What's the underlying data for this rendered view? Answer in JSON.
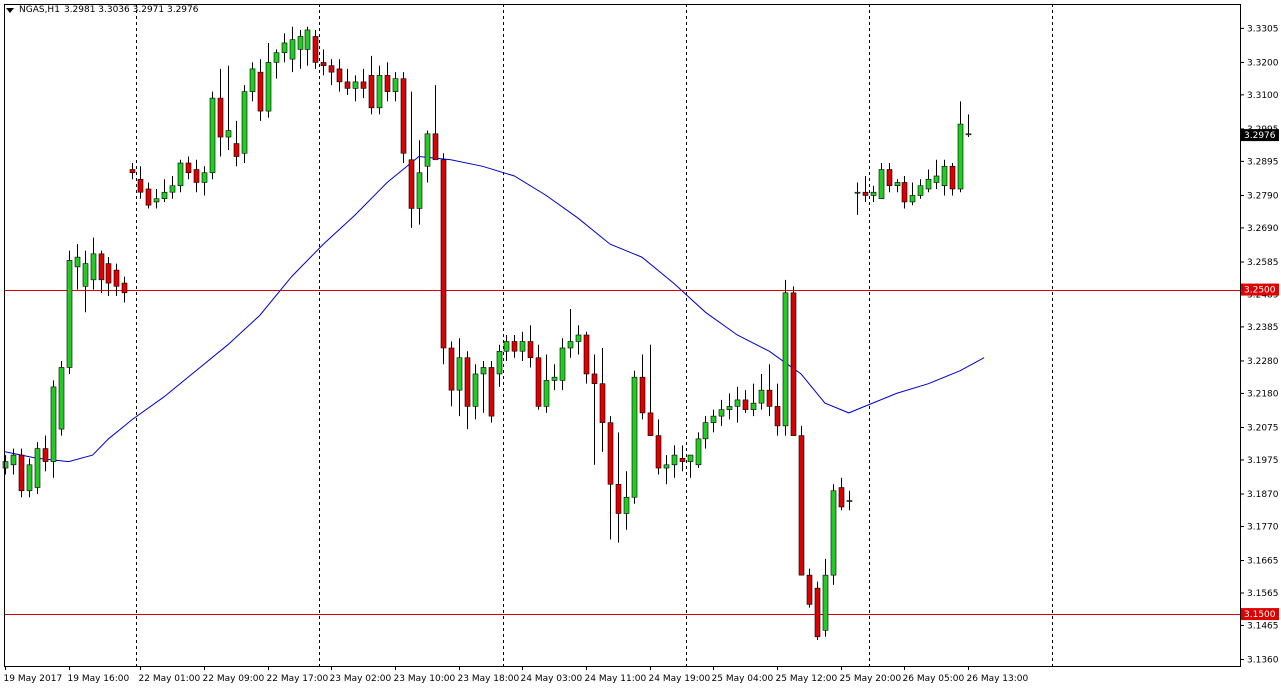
{
  "header": {
    "symbol": "NGAS,H1",
    "ohlc": "3.2981 3.3036 3.2971 3.2976"
  },
  "colors": {
    "bull": "#22cc22",
    "bear": "#dd0000",
    "wick": "#000000",
    "ma": "#0000cc",
    "hline": "#dd0000",
    "price_tag": "#000000",
    "level_tag": "#dd0000",
    "grid": "#000000"
  },
  "chart_data": {
    "type": "candlestick",
    "ylim": [
      3.134,
      3.338
    ],
    "y_ticks": [
      "3.3305",
      "3.3200",
      "3.3100",
      "3.2995",
      "3.2895",
      "3.2790",
      "3.2690",
      "3.2585",
      "3.2485",
      "3.2385",
      "3.2280",
      "3.2180",
      "3.2075",
      "3.1975",
      "3.1870",
      "3.1770",
      "3.1665",
      "3.1565",
      "3.1465",
      "3.1360"
    ],
    "x_ticks": [
      {
        "label": "19 May 2017",
        "i": 0
      },
      {
        "label": "19 May 16:00",
        "i": 8
      },
      {
        "label": "22 May 01:00",
        "i": 17
      },
      {
        "label": "22 May 09:00",
        "i": 25
      },
      {
        "label": "22 May 17:00",
        "i": 33
      },
      {
        "label": "23 May 02:00",
        "i": 41
      },
      {
        "label": "23 May 10:00",
        "i": 49
      },
      {
        "label": "23 May 18:00",
        "i": 57
      },
      {
        "label": "24 May 03:00",
        "i": 65
      },
      {
        "label": "24 May 11:00",
        "i": 73
      },
      {
        "label": "24 May 19:00",
        "i": 81
      },
      {
        "label": "25 May 04:00",
        "i": 89
      },
      {
        "label": "25 May 12:00",
        "i": 97
      },
      {
        "label": "25 May 20:00",
        "i": 105
      },
      {
        "label": "26 May 05:00",
        "i": 113
      },
      {
        "label": "26 May 13:00",
        "i": 121
      }
    ],
    "day_separators": [
      16.5,
      39.5,
      62.5,
      85.5,
      108.5,
      131.5
    ],
    "horizontal_lines": [
      {
        "price": 3.25,
        "label": "3.2500"
      },
      {
        "price": 3.15,
        "label": "3.1500"
      }
    ],
    "current_price": {
      "price": 3.2976,
      "label": "3.2976"
    },
    "ma_line": [
      [
        0,
        3.2
      ],
      [
        4,
        3.198
      ],
      [
        8,
        3.197
      ],
      [
        11,
        3.199
      ],
      [
        13,
        3.204
      ],
      [
        16,
        3.21
      ],
      [
        20,
        3.217
      ],
      [
        24,
        3.225
      ],
      [
        28,
        3.233
      ],
      [
        32,
        3.242
      ],
      [
        36,
        3.254
      ],
      [
        40,
        3.264
      ],
      [
        44,
        3.273
      ],
      [
        48,
        3.283
      ],
      [
        52,
        3.291
      ],
      [
        56,
        3.29
      ],
      [
        60,
        3.288
      ],
      [
        64,
        3.285
      ],
      [
        68,
        3.279
      ],
      [
        72,
        3.272
      ],
      [
        76,
        3.264
      ],
      [
        80,
        3.26
      ],
      [
        84,
        3.252
      ],
      [
        88,
        3.243
      ],
      [
        92,
        3.236
      ],
      [
        96,
        3.231
      ],
      [
        100,
        3.224
      ],
      [
        103,
        3.215
      ],
      [
        106,
        3.212
      ],
      [
        108,
        3.214
      ],
      [
        112,
        3.218
      ],
      [
        116,
        3.221
      ],
      [
        120,
        3.225
      ],
      [
        123,
        3.229
      ]
    ],
    "candles": [
      {
        "o": 3.195,
        "h": 3.199,
        "l": 3.193,
        "c": 3.197
      },
      {
        "o": 3.196,
        "h": 3.201,
        "l": 3.193,
        "c": 3.199
      },
      {
        "o": 3.199,
        "h": 3.201,
        "l": 3.186,
        "c": 3.188
      },
      {
        "o": 3.188,
        "h": 3.198,
        "l": 3.186,
        "c": 3.196
      },
      {
        "o": 3.189,
        "h": 3.203,
        "l": 3.187,
        "c": 3.201
      },
      {
        "o": 3.201,
        "h": 3.205,
        "l": 3.194,
        "c": 3.197
      },
      {
        "o": 3.197,
        "h": 3.222,
        "l": 3.192,
        "c": 3.22
      },
      {
        "o": 3.207,
        "h": 3.228,
        "l": 3.205,
        "c": 3.226
      },
      {
        "o": 3.226,
        "h": 3.262,
        "l": 3.224,
        "c": 3.259
      },
      {
        "o": 3.257,
        "h": 3.264,
        "l": 3.25,
        "c": 3.26
      },
      {
        "o": 3.251,
        "h": 3.262,
        "l": 3.243,
        "c": 3.258
      },
      {
        "o": 3.253,
        "h": 3.266,
        "l": 3.25,
        "c": 3.261
      },
      {
        "o": 3.261,
        "h": 3.262,
        "l": 3.249,
        "c": 3.253
      },
      {
        "o": 3.258,
        "h": 3.26,
        "l": 3.248,
        "c": 3.252
      },
      {
        "o": 3.256,
        "h": 3.258,
        "l": 3.248,
        "c": 3.251
      },
      {
        "o": 3.252,
        "h": 3.254,
        "l": 3.246,
        "c": 3.249
      },
      {
        "o": 3.287,
        "h": 3.289,
        "l": 3.284,
        "c": 3.286
      },
      {
        "o": 3.284,
        "h": 3.288,
        "l": 3.278,
        "c": 3.28
      },
      {
        "o": 3.281,
        "h": 3.283,
        "l": 3.275,
        "c": 3.276
      },
      {
        "o": 3.277,
        "h": 3.281,
        "l": 3.275,
        "c": 3.278
      },
      {
        "o": 3.278,
        "h": 3.284,
        "l": 3.277,
        "c": 3.28
      },
      {
        "o": 3.28,
        "h": 3.285,
        "l": 3.278,
        "c": 3.282
      },
      {
        "o": 3.282,
        "h": 3.29,
        "l": 3.28,
        "c": 3.289
      },
      {
        "o": 3.289,
        "h": 3.291,
        "l": 3.284,
        "c": 3.286
      },
      {
        "o": 3.287,
        "h": 3.29,
        "l": 3.28,
        "c": 3.283
      },
      {
        "o": 3.283,
        "h": 3.288,
        "l": 3.279,
        "c": 3.286
      },
      {
        "o": 3.286,
        "h": 3.311,
        "l": 3.284,
        "c": 3.309
      },
      {
        "o": 3.309,
        "h": 3.318,
        "l": 3.291,
        "c": 3.297
      },
      {
        "o": 3.297,
        "h": 3.319,
        "l": 3.293,
        "c": 3.299
      },
      {
        "o": 3.295,
        "h": 3.302,
        "l": 3.288,
        "c": 3.291
      },
      {
        "o": 3.292,
        "h": 3.313,
        "l": 3.289,
        "c": 3.311
      },
      {
        "o": 3.311,
        "h": 3.32,
        "l": 3.308,
        "c": 3.318
      },
      {
        "o": 3.317,
        "h": 3.321,
        "l": 3.302,
        "c": 3.305
      },
      {
        "o": 3.305,
        "h": 3.326,
        "l": 3.303,
        "c": 3.32
      },
      {
        "o": 3.32,
        "h": 3.324,
        "l": 3.315,
        "c": 3.323
      },
      {
        "o": 3.323,
        "h": 3.329,
        "l": 3.32,
        "c": 3.326
      },
      {
        "o": 3.321,
        "h": 3.331,
        "l": 3.317,
        "c": 3.327
      },
      {
        "o": 3.324,
        "h": 3.33,
        "l": 3.318,
        "c": 3.328
      },
      {
        "o": 3.324,
        "h": 3.331,
        "l": 3.319,
        "c": 3.33
      },
      {
        "o": 3.328,
        "h": 3.33,
        "l": 3.318,
        "c": 3.32
      },
      {
        "o": 3.32,
        "h": 3.324,
        "l": 3.316,
        "c": 3.319
      },
      {
        "o": 3.319,
        "h": 3.321,
        "l": 3.313,
        "c": 3.317
      },
      {
        "o": 3.318,
        "h": 3.321,
        "l": 3.311,
        "c": 3.314
      },
      {
        "o": 3.314,
        "h": 3.318,
        "l": 3.31,
        "c": 3.312
      },
      {
        "o": 3.312,
        "h": 3.316,
        "l": 3.308,
        "c": 3.314
      },
      {
        "o": 3.314,
        "h": 3.318,
        "l": 3.309,
        "c": 3.312
      },
      {
        "o": 3.316,
        "h": 3.322,
        "l": 3.304,
        "c": 3.306
      },
      {
        "o": 3.306,
        "h": 3.319,
        "l": 3.304,
        "c": 3.316
      },
      {
        "o": 3.316,
        "h": 3.32,
        "l": 3.308,
        "c": 3.311
      },
      {
        "o": 3.311,
        "h": 3.317,
        "l": 3.308,
        "c": 3.315
      },
      {
        "o": 3.315,
        "h": 3.317,
        "l": 3.289,
        "c": 3.292
      },
      {
        "o": 3.29,
        "h": 3.311,
        "l": 3.269,
        "c": 3.275
      },
      {
        "o": 3.275,
        "h": 3.296,
        "l": 3.27,
        "c": 3.286
      },
      {
        "o": 3.288,
        "h": 3.299,
        "l": 3.283,
        "c": 3.298
      },
      {
        "o": 3.298,
        "h": 3.313,
        "l": 3.29,
        "c": 3.29
      },
      {
        "o": 3.29,
        "h": 3.292,
        "l": 3.227,
        "c": 3.232
      },
      {
        "o": 3.232,
        "h": 3.234,
        "l": 3.214,
        "c": 3.219
      },
      {
        "o": 3.219,
        "h": 3.235,
        "l": 3.211,
        "c": 3.229
      },
      {
        "o": 3.229,
        "h": 3.231,
        "l": 3.207,
        "c": 3.214
      },
      {
        "o": 3.214,
        "h": 3.227,
        "l": 3.21,
        "c": 3.224
      },
      {
        "o": 3.224,
        "h": 3.228,
        "l": 3.212,
        "c": 3.226
      },
      {
        "o": 3.226,
        "h": 3.228,
        "l": 3.209,
        "c": 3.211
      },
      {
        "o": 3.224,
        "h": 3.233,
        "l": 3.22,
        "c": 3.231
      },
      {
        "o": 3.231,
        "h": 3.236,
        "l": 3.228,
        "c": 3.234
      },
      {
        "o": 3.234,
        "h": 3.236,
        "l": 3.229,
        "c": 3.231
      },
      {
        "o": 3.231,
        "h": 3.237,
        "l": 3.228,
        "c": 3.234
      },
      {
        "o": 3.234,
        "h": 3.239,
        "l": 3.226,
        "c": 3.229
      },
      {
        "o": 3.229,
        "h": 3.233,
        "l": 3.213,
        "c": 3.214
      },
      {
        "o": 3.214,
        "h": 3.23,
        "l": 3.212,
        "c": 3.222
      },
      {
        "o": 3.222,
        "h": 3.227,
        "l": 3.219,
        "c": 3.223
      },
      {
        "o": 3.222,
        "h": 3.235,
        "l": 3.219,
        "c": 3.232
      },
      {
        "o": 3.232,
        "h": 3.244,
        "l": 3.229,
        "c": 3.234
      },
      {
        "o": 3.234,
        "h": 3.239,
        "l": 3.23,
        "c": 3.236
      },
      {
        "o": 3.236,
        "h": 3.237,
        "l": 3.221,
        "c": 3.224
      },
      {
        "o": 3.224,
        "h": 3.23,
        "l": 3.196,
        "c": 3.221
      },
      {
        "o": 3.221,
        "h": 3.232,
        "l": 3.2,
        "c": 3.209
      },
      {
        "o": 3.209,
        "h": 3.211,
        "l": 3.173,
        "c": 3.19
      },
      {
        "o": 3.19,
        "h": 3.206,
        "l": 3.172,
        "c": 3.181
      },
      {
        "o": 3.181,
        "h": 3.194,
        "l": 3.176,
        "c": 3.186
      },
      {
        "o": 3.186,
        "h": 3.225,
        "l": 3.184,
        "c": 3.223
      },
      {
        "o": 3.223,
        "h": 3.23,
        "l": 3.21,
        "c": 3.212
      },
      {
        "o": 3.212,
        "h": 3.233,
        "l": 3.205,
        "c": 3.205
      },
      {
        "o": 3.205,
        "h": 3.21,
        "l": 3.193,
        "c": 3.195
      },
      {
        "o": 3.195,
        "h": 3.199,
        "l": 3.19,
        "c": 3.196
      },
      {
        "o": 3.196,
        "h": 3.202,
        "l": 3.192,
        "c": 3.199
      },
      {
        "o": 3.198,
        "h": 3.202,
        "l": 3.194,
        "c": 3.197
      },
      {
        "o": 3.197,
        "h": 3.199,
        "l": 3.192,
        "c": 3.199
      },
      {
        "o": 3.196,
        "h": 3.206,
        "l": 3.195,
        "c": 3.204
      },
      {
        "o": 3.204,
        "h": 3.211,
        "l": 3.201,
        "c": 3.209
      },
      {
        "o": 3.209,
        "h": 3.213,
        "l": 3.206,
        "c": 3.211
      },
      {
        "o": 3.211,
        "h": 3.216,
        "l": 3.208,
        "c": 3.213
      },
      {
        "o": 3.213,
        "h": 3.218,
        "l": 3.21,
        "c": 3.214
      },
      {
        "o": 3.214,
        "h": 3.22,
        "l": 3.209,
        "c": 3.216
      },
      {
        "o": 3.216,
        "h": 3.219,
        "l": 3.212,
        "c": 3.213
      },
      {
        "o": 3.213,
        "h": 3.221,
        "l": 3.211,
        "c": 3.215
      },
      {
        "o": 3.215,
        "h": 3.224,
        "l": 3.213,
        "c": 3.219
      },
      {
        "o": 3.219,
        "h": 3.227,
        "l": 3.211,
        "c": 3.214
      },
      {
        "o": 3.214,
        "h": 3.221,
        "l": 3.205,
        "c": 3.208
      },
      {
        "o": 3.208,
        "h": 3.253,
        "l": 3.205,
        "c": 3.249
      },
      {
        "o": 3.249,
        "h": 3.251,
        "l": 3.205,
        "c": 3.205
      },
      {
        "o": 3.205,
        "h": 3.208,
        "l": 3.162,
        "c": 3.162
      },
      {
        "o": 3.162,
        "h": 3.164,
        "l": 3.152,
        "c": 3.153
      },
      {
        "o": 3.158,
        "h": 3.16,
        "l": 3.142,
        "c": 3.143
      },
      {
        "o": 3.145,
        "h": 3.167,
        "l": 3.143,
        "c": 3.162
      },
      {
        "o": 3.162,
        "h": 3.19,
        "l": 3.159,
        "c": 3.188
      },
      {
        "o": 3.189,
        "h": 3.192,
        "l": 3.182,
        "c": 3.183
      },
      {
        "o": 3.185,
        "h": 3.188,
        "l": 3.182,
        "c": 3.185
      },
      {
        "o": 3.28,
        "h": 3.283,
        "l": 3.273,
        "c": 3.28
      },
      {
        "o": 3.28,
        "h": 3.285,
        "l": 3.277,
        "c": 3.279
      },
      {
        "o": 3.279,
        "h": 3.282,
        "l": 3.277,
        "c": 3.28
      },
      {
        "o": 3.278,
        "h": 3.289,
        "l": 3.278,
        "c": 3.287
      },
      {
        "o": 3.287,
        "h": 3.289,
        "l": 3.28,
        "c": 3.282
      },
      {
        "o": 3.282,
        "h": 3.284,
        "l": 3.28,
        "c": 3.283
      },
      {
        "o": 3.283,
        "h": 3.285,
        "l": 3.275,
        "c": 3.277
      },
      {
        "o": 3.277,
        "h": 3.283,
        "l": 3.276,
        "c": 3.279
      },
      {
        "o": 3.279,
        "h": 3.284,
        "l": 3.278,
        "c": 3.282
      },
      {
        "o": 3.281,
        "h": 3.287,
        "l": 3.28,
        "c": 3.284
      },
      {
        "o": 3.283,
        "h": 3.29,
        "l": 3.281,
        "c": 3.285
      },
      {
        "o": 3.282,
        "h": 3.29,
        "l": 3.279,
        "c": 3.288
      },
      {
        "o": 3.288,
        "h": 3.289,
        "l": 3.279,
        "c": 3.281
      },
      {
        "o": 3.281,
        "h": 3.308,
        "l": 3.28,
        "c": 3.301
      },
      {
        "o": 3.298,
        "h": 3.304,
        "l": 3.297,
        "c": 3.298
      }
    ]
  }
}
